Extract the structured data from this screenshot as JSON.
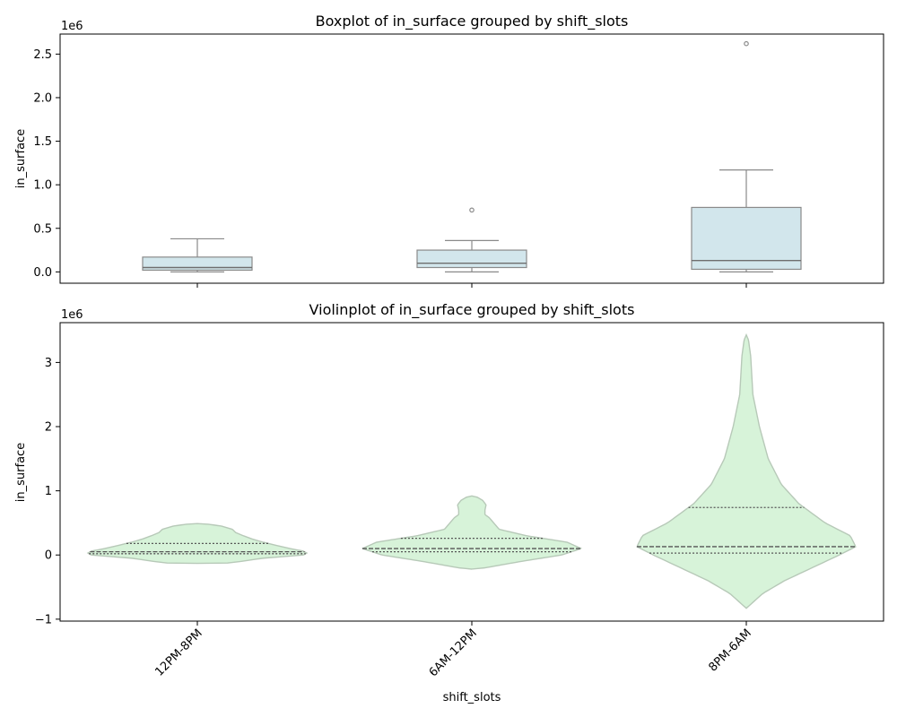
{
  "colors": {
    "box_fill": "#d2e6ec",
    "box_edge": "#8a8a8a",
    "median": "#6e6e6e",
    "violin_fill": "#d7f3d9",
    "violin_edge": "#b7c9b8",
    "violin_lines": "#555555"
  },
  "chart_data": [
    {
      "type": "box",
      "title": "Boxplot of in_surface grouped by shift_slots",
      "xlabel": "",
      "ylabel": "in_surface",
      "offset_label": "1e6",
      "categories": [
        "12PM-8PM",
        "6AM-12PM",
        "8PM-6AM"
      ],
      "ylim": [
        -0.13,
        2.73
      ],
      "yticks": [
        0.0,
        0.5,
        1.0,
        1.5,
        2.0,
        2.5
      ],
      "ytick_labels": [
        "0.0",
        "0.5",
        "1.0",
        "1.5",
        "2.0",
        "2.5"
      ],
      "xtick_labels_visible": false,
      "boxes": [
        {
          "category": "12PM-8PM",
          "whisker_low": 0.0,
          "q1": 0.02,
          "median": 0.05,
          "q3": 0.17,
          "whisker_high": 0.38,
          "outliers": []
        },
        {
          "category": "6AM-12PM",
          "whisker_low": 0.0,
          "q1": 0.05,
          "median": 0.1,
          "q3": 0.25,
          "whisker_high": 0.36,
          "outliers": [
            0.71
          ]
        },
        {
          "category": "8PM-6AM",
          "whisker_low": 0.0,
          "q1": 0.03,
          "median": 0.13,
          "q3": 0.74,
          "whisker_high": 1.17,
          "outliers": [
            2.62
          ]
        }
      ]
    },
    {
      "type": "violin",
      "title": "Violinplot of in_surface grouped by shift_slots",
      "xlabel": "shift_slots",
      "ylabel": "in_surface",
      "offset_label": "1e6",
      "categories": [
        "12PM-8PM",
        "6AM-12PM",
        "8PM-6AM"
      ],
      "ylim": [
        -1.03,
        3.62
      ],
      "yticks": [
        -1,
        0,
        1,
        2,
        3
      ],
      "ytick_labels": [
        "−1",
        "0",
        "1",
        "2",
        "3"
      ],
      "violins": [
        {
          "category": "12PM-8PM",
          "q1": 0.02,
          "median": 0.05,
          "q3": 0.18,
          "profile": [
            [
              -0.13,
              0.25
            ],
            [
              -0.1,
              0.4
            ],
            [
              -0.05,
              0.6
            ],
            [
              0.0,
              0.97
            ],
            [
              0.03,
              1.0
            ],
            [
              0.06,
              0.97
            ],
            [
              0.1,
              0.85
            ],
            [
              0.15,
              0.72
            ],
            [
              0.2,
              0.6
            ],
            [
              0.25,
              0.5
            ],
            [
              0.3,
              0.42
            ],
            [
              0.35,
              0.35
            ],
            [
              0.4,
              0.32
            ],
            [
              0.45,
              0.22
            ],
            [
              0.48,
              0.1
            ],
            [
              0.49,
              0.0
            ]
          ]
        },
        {
          "category": "6AM-12PM",
          "q1": 0.05,
          "median": 0.1,
          "q3": 0.26,
          "profile": [
            [
              -0.22,
              0.0
            ],
            [
              -0.2,
              0.12
            ],
            [
              -0.1,
              0.45
            ],
            [
              0.0,
              0.82
            ],
            [
              0.1,
              1.0
            ],
            [
              0.2,
              0.87
            ],
            [
              0.3,
              0.5
            ],
            [
              0.4,
              0.25
            ],
            [
              0.5,
              0.2
            ],
            [
              0.58,
              0.16
            ],
            [
              0.63,
              0.12
            ],
            [
              0.7,
              0.12
            ],
            [
              0.78,
              0.13
            ],
            [
              0.85,
              0.1
            ],
            [
              0.9,
              0.05
            ],
            [
              0.92,
              0.0
            ]
          ]
        },
        {
          "category": "8PM-6AM",
          "q1": 0.03,
          "median": 0.13,
          "q3": 0.74,
          "profile": [
            [
              -0.83,
              0.0
            ],
            [
              -0.8,
              0.02
            ],
            [
              -0.6,
              0.15
            ],
            [
              -0.4,
              0.35
            ],
            [
              -0.2,
              0.6
            ],
            [
              0.0,
              0.85
            ],
            [
              0.13,
              1.0
            ],
            [
              0.3,
              0.95
            ],
            [
              0.5,
              0.72
            ],
            [
              0.8,
              0.48
            ],
            [
              1.1,
              0.32
            ],
            [
              1.5,
              0.2
            ],
            [
              2.0,
              0.12
            ],
            [
              2.5,
              0.06
            ],
            [
              2.8,
              0.05
            ],
            [
              3.1,
              0.04
            ],
            [
              3.35,
              0.02
            ],
            [
              3.43,
              0.0
            ]
          ]
        }
      ]
    }
  ]
}
